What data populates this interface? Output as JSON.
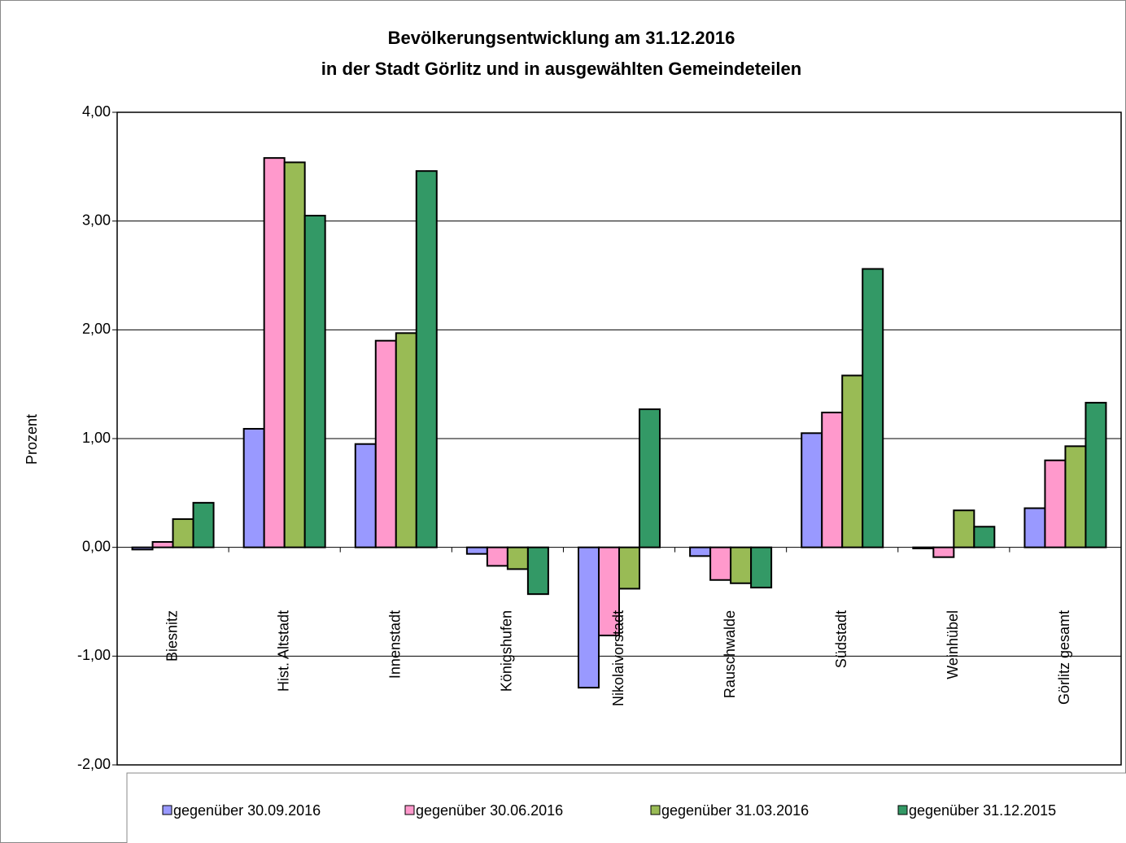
{
  "chart_data": {
    "type": "bar",
    "title": "Bevölkerungsentwicklung am 31.12.2016",
    "subtitle": "in der Stadt Görlitz und in ausgewählten Gemeindeteilen",
    "y_label": "Prozent",
    "categories": [
      "Biesnitz",
      "Hist. Altstadt",
      "Innenstadt",
      "Königshufen",
      "Nikolaivorstadt",
      "Rauschwalde",
      "Südstadt",
      "Weinhübel",
      "Görlitz gesamt"
    ],
    "series": [
      {
        "name": "gegenüber 30.09.2016",
        "color": "#9999ff",
        "values": [
          -0.02,
          1.09,
          0.95,
          -0.06,
          -1.29,
          -0.08,
          1.05,
          -0.01,
          0.36
        ]
      },
      {
        "name": "gegenüber 30.06.2016",
        "color": "#ff99cc",
        "values": [
          0.05,
          3.58,
          1.9,
          -0.17,
          -0.81,
          -0.3,
          1.24,
          -0.09,
          0.8
        ]
      },
      {
        "name": "gegenüber 31.03.2016",
        "color": "#99bb55",
        "values": [
          0.26,
          3.54,
          1.97,
          -0.2,
          -0.38,
          -0.33,
          1.58,
          0.34,
          0.93
        ]
      },
      {
        "name": "gegenüber 31.12.2015",
        "color": "#339966",
        "values": [
          0.41,
          3.05,
          3.46,
          -0.43,
          1.27,
          -0.37,
          2.56,
          0.19,
          1.33
        ]
      }
    ],
    "ylim": [
      -2,
      4
    ],
    "yticks": [
      {
        "value": -2,
        "label": "-2,00"
      },
      {
        "value": -1,
        "label": "-1,00"
      },
      {
        "value": 0,
        "label": "0,00"
      },
      {
        "value": 1,
        "label": "1,00"
      },
      {
        "value": 2,
        "label": "2,00"
      },
      {
        "value": 3,
        "label": "3,00"
      },
      {
        "value": 4,
        "label": "4,00"
      }
    ],
    "grid": true
  }
}
